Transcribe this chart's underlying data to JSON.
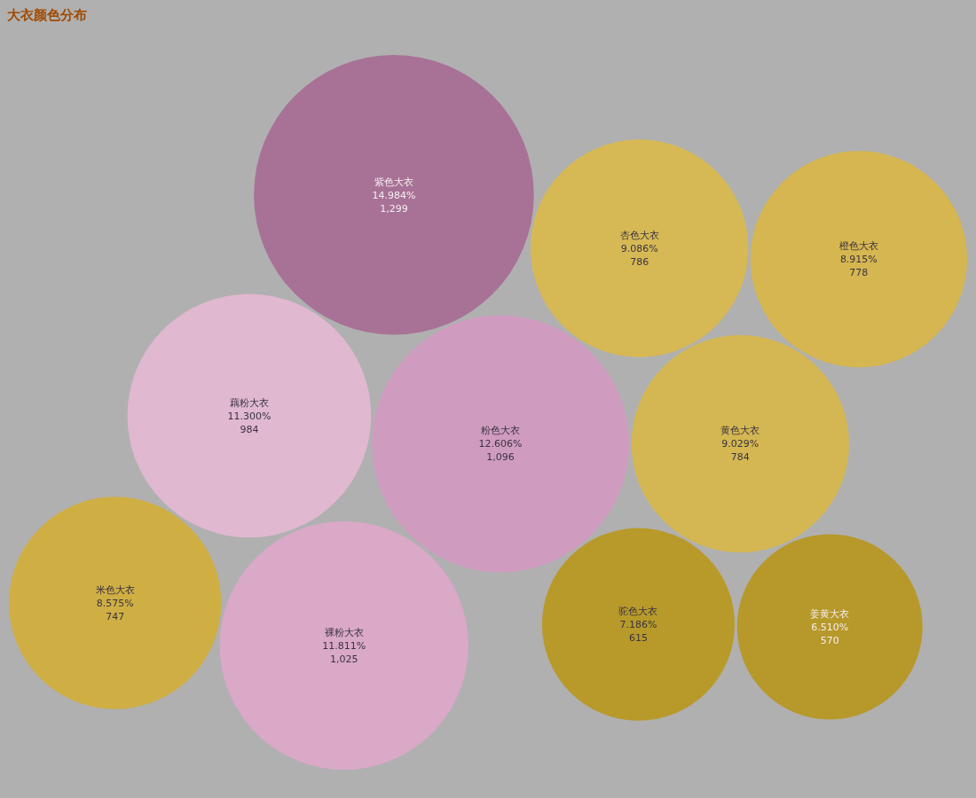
{
  "chart_data": {
    "type": "other",
    "title": "大衣颜色分布",
    "categories": [
      "粉色大衣",
      "黄色大衣",
      "驼色大衣",
      "杏色大衣",
      "紫色大衣",
      "藕粉大衣",
      "裸粉大衣",
      "姜黄大衣",
      "橙色大衣",
      "米色大衣"
    ],
    "values": [
      1096,
      784,
      615,
      786,
      1299,
      984,
      1025,
      570,
      778,
      747
    ],
    "value_labels": [
      "12.606%\n1,096",
      "9.029%\n784",
      "7.186%\n615",
      "9.086%\n786",
      "14.984%\n1,299",
      "11.300%\n984",
      "11.811%\n1,025",
      "6.510%\n570",
      "8.915%\n778",
      "8.575%\n747"
    ],
    "colors": [
      "#cf9cc0",
      "#d4b752",
      "#b89a2a",
      "#d6b955",
      "#a87296",
      "#e0b8d0",
      "#d9a9c7",
      "#b7982a",
      "#d5b650",
      "#cfae44"
    ]
  }
}
